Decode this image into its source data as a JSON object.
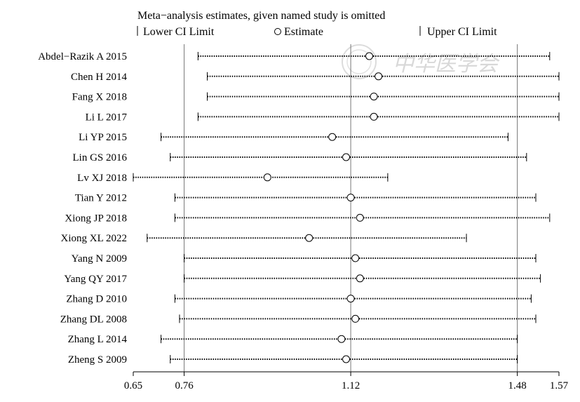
{
  "chart_data": {
    "type": "forest",
    "title": "Meta−analysis estimates, given named study is omitted",
    "legend": {
      "lower": "Lower CI Limit",
      "estimate": "Estimate",
      "upper": "Upper CI Limit"
    },
    "xlim": [
      0.65,
      1.57
    ],
    "xticks": [
      "0.65",
      "0.76",
      "1.12",
      "1.48",
      "1.57"
    ],
    "xtick_values": [
      0.65,
      0.76,
      1.12,
      1.48,
      1.57
    ],
    "reference_lines": [
      0.76,
      1.12,
      1.48
    ],
    "studies": [
      {
        "name": "Abdel−Razik A 2015",
        "lower": 0.79,
        "estimate": 1.16,
        "upper": 1.55
      },
      {
        "name": "Chen H 2014",
        "lower": 0.81,
        "estimate": 1.18,
        "upper": 1.57
      },
      {
        "name": "Fang X 2018",
        "lower": 0.81,
        "estimate": 1.17,
        "upper": 1.57
      },
      {
        "name": "Li L 2017",
        "lower": 0.79,
        "estimate": 1.17,
        "upper": 1.57
      },
      {
        "name": "Li YP 2015",
        "lower": 0.71,
        "estimate": 1.08,
        "upper": 1.46
      },
      {
        "name": "Lin GS 2016",
        "lower": 0.73,
        "estimate": 1.11,
        "upper": 1.5
      },
      {
        "name": "Lv XJ 2018",
        "lower": 0.65,
        "estimate": 0.94,
        "upper": 1.2
      },
      {
        "name": "Tian Y 2012",
        "lower": 0.74,
        "estimate": 1.12,
        "upper": 1.52
      },
      {
        "name": "Xiong JP 2018",
        "lower": 0.74,
        "estimate": 1.14,
        "upper": 1.55
      },
      {
        "name": "Xiong XL 2022",
        "lower": 0.68,
        "estimate": 1.03,
        "upper": 1.37
      },
      {
        "name": "Yang N 2009",
        "lower": 0.76,
        "estimate": 1.13,
        "upper": 1.52
      },
      {
        "name": "Yang QY 2017",
        "lower": 0.76,
        "estimate": 1.14,
        "upper": 1.53
      },
      {
        "name": "Zhang D 2010",
        "lower": 0.74,
        "estimate": 1.12,
        "upper": 1.51
      },
      {
        "name": "Zhang DL 2008",
        "lower": 0.75,
        "estimate": 1.13,
        "upper": 1.52
      },
      {
        "name": "Zhang L 2014",
        "lower": 0.71,
        "estimate": 1.1,
        "upper": 1.48
      },
      {
        "name": "Zheng S 2009",
        "lower": 0.73,
        "estimate": 1.11,
        "upper": 1.48
      }
    ]
  },
  "watermark": "中华医学会"
}
